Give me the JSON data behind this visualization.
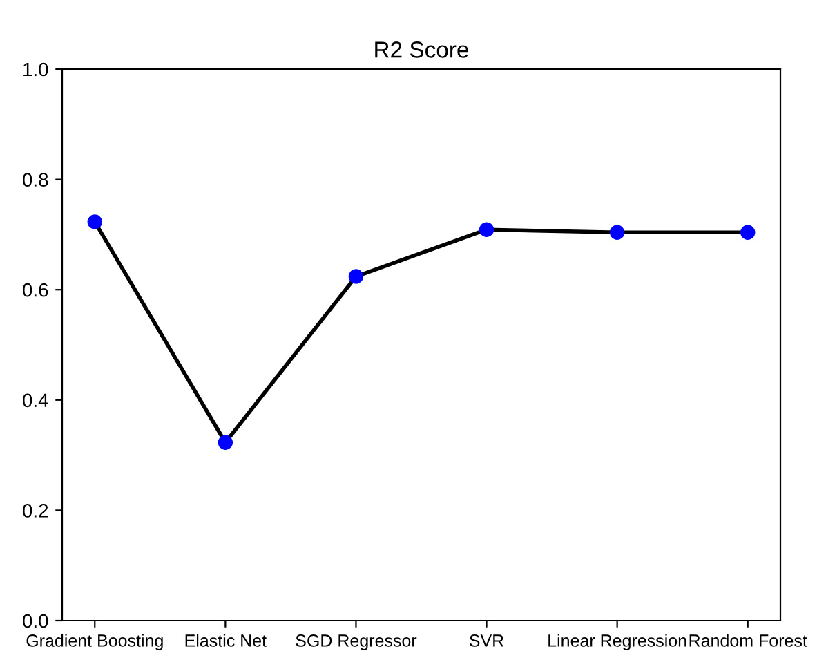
{
  "chart_data": {
    "type": "line",
    "title": "R2 Score",
    "categories": [
      "Gradient Boosting",
      "Elastic Net",
      "SGD Regressor",
      "SVR",
      "Linear Regression",
      "Random Forest"
    ],
    "series": [
      {
        "color": "#000000",
        "values": [
          0.723,
          0.323,
          0.624,
          0.709,
          0.704,
          0.704
        ]
      },
      {
        "type": "scatter",
        "color": "#0000ff",
        "values": [
          0.723,
          0.323,
          0.624,
          0.709,
          0.704,
          0.704
        ],
        "marker": "circle"
      }
    ],
    "ylim": [
      0.0,
      1.0
    ],
    "yticks": [
      {
        "value": 0.0,
        "label": "0.0"
      },
      {
        "value": 0.2,
        "label": "0.2"
      },
      {
        "value": 0.4,
        "label": "0.4"
      },
      {
        "value": 0.6,
        "label": "0.6"
      },
      {
        "value": 0.8,
        "label": "0.8"
      },
      {
        "value": 1.0,
        "label": "1.0"
      }
    ],
    "grid": false,
    "legend": false
  }
}
